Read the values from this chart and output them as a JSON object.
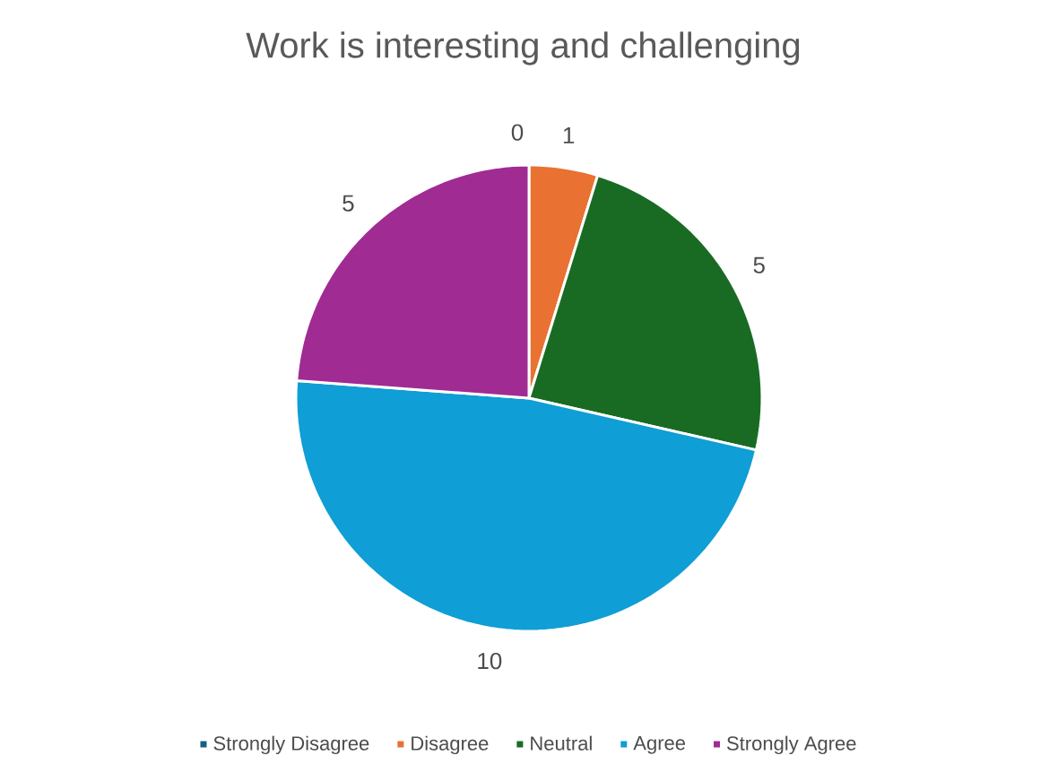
{
  "chart_data": {
    "type": "pie",
    "title": "Work is interesting and challenging",
    "categories": [
      "Strongly Disagree",
      "Disagree",
      "Neutral",
      "Agree",
      "Strongly Agree"
    ],
    "values": [
      0,
      1,
      5,
      10,
      5
    ],
    "colors": [
      "#156082",
      "#e97132",
      "#196b24",
      "#0f9ed5",
      "#a02b93"
    ],
    "value_labels": [
      "0",
      "1",
      "5",
      "10",
      "5"
    ],
    "legend": "bottom"
  }
}
